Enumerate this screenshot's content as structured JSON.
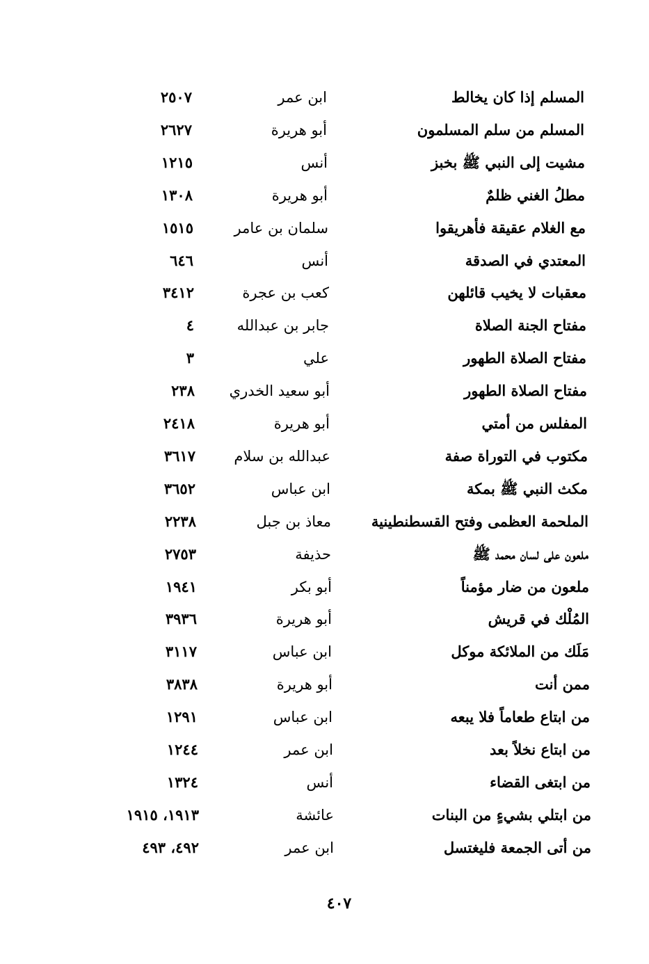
{
  "entries": [
    {
      "hadith": "المسلم إذا كان يخالط",
      "narrator": "ابن عمر",
      "number": "٢٥٠٧"
    },
    {
      "hadith": "المسلم من سلم المسلمون",
      "narrator": "أبو هريرة",
      "number": "٢٦٢٧"
    },
    {
      "hadith": "مشيت إلى النبي ﷺ بخبز",
      "narrator": "أنس",
      "number": "١٢١٥"
    },
    {
      "hadith": "مطلُ الغني ظلمٌ",
      "narrator": "أبو هريرة",
      "number": "١٣٠٨"
    },
    {
      "hadith": "مع الغلام عقيقة فأهريقوا",
      "narrator": "سلمان بن عامر",
      "number": "١٥١٥"
    },
    {
      "hadith": "المعتدي في الصدقة",
      "narrator": "أنس",
      "number": "٦٤٦"
    },
    {
      "hadith": "معقبات لا يخيب قائلهن",
      "narrator": "كعب بن عجرة",
      "number": "٣٤١٢"
    },
    {
      "hadith": "مفتاح الجنة الصلاة",
      "narrator": "جابر بن عبدالله",
      "number": "٤"
    },
    {
      "hadith": "مفتاح الصلاة الطهور",
      "narrator": "علي",
      "number": "٣"
    },
    {
      "hadith": "مفتاح الصلاة الطهور",
      "narrator": "أبو سعيد الخدري",
      "number": "٢٣٨"
    },
    {
      "hadith": "المفلس من أمتي",
      "narrator": "أبو هريرة",
      "number": "٢٤١٨"
    },
    {
      "hadith": "مكتوب في التوراة صفة",
      "narrator": "عبدالله بن سلام",
      "number": "٣٦١٧"
    },
    {
      "hadith": "مكث النبي ﷺ بمكة",
      "narrator": "ابن عباس",
      "number": "٣٦٥٢"
    },
    {
      "hadith": "الملحمة العظمى وفتح القسطنطينية",
      "narrator": "معاذ بن جبل",
      "number": "٢٢٣٨"
    },
    {
      "hadith": "ملعون على لسان محمد ﷺ",
      "narrator": "حذيفة",
      "number": "٢٧٥٣"
    },
    {
      "hadith": "ملعون من ضار مؤمناً",
      "narrator": "أبو بكر",
      "number": "١٩٤١"
    },
    {
      "hadith": "المُلْك في قريش",
      "narrator": "أبو هريرة",
      "number": "٣٩٣٦"
    },
    {
      "hadith": "مَلَك من الملائكة موكل",
      "narrator": "ابن عباس",
      "number": "٣١١٧"
    },
    {
      "hadith": "ممن أنت",
      "narrator": "أبو هريرة",
      "number": "٣٨٣٨"
    },
    {
      "hadith": "من ابتاع طعاماً فلا يبعه",
      "narrator": "ابن عباس",
      "number": "١٢٩١"
    },
    {
      "hadith": "من ابتاع نخلاً بعد",
      "narrator": "ابن عمر",
      "number": "١٢٤٤"
    },
    {
      "hadith": "من ابتغى القضاء",
      "narrator": "أنس",
      "number": "١٣٢٤"
    },
    {
      "hadith": "من ابتلي بشيءٍ من البنات",
      "narrator": "عائشة",
      "number": "١٩١٣، ١٩١٥"
    },
    {
      "hadith": "من أتى الجمعة فليغتسل",
      "narrator": "ابن عمر",
      "number": "٤٩٢، ٤٩٣"
    }
  ],
  "page_number": "٤٠٧"
}
